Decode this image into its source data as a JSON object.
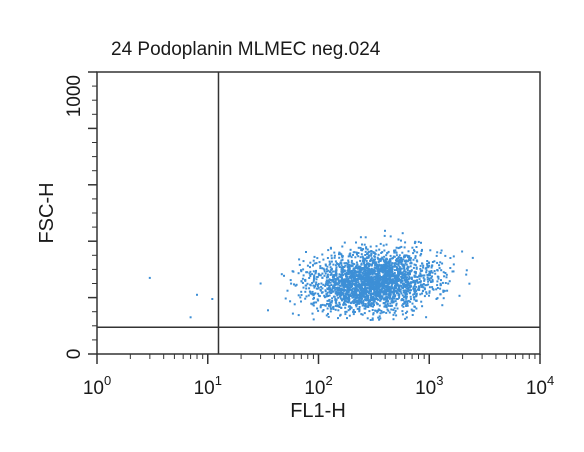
{
  "chart_data": {
    "type": "scatter",
    "title": "24 Podoplanin MLMEC neg.024",
    "xlabel": "FL1-H",
    "ylabel": "FSC-H",
    "x_scale": "log",
    "xlim": [
      1,
      10000
    ],
    "ylim": [
      0,
      1000
    ],
    "x_tick_labels": [
      {
        "base": "10",
        "exp": "0",
        "value": 1
      },
      {
        "base": "10",
        "exp": "1",
        "value": 10
      },
      {
        "base": "10",
        "exp": "2",
        "value": 100
      },
      {
        "base": "10",
        "exp": "3",
        "value": 1000
      },
      {
        "base": "10",
        "exp": "4",
        "value": 10000
      }
    ],
    "y_tick_labels": [
      {
        "text": "0",
        "value": 0
      },
      {
        "text": "1000",
        "value": 1000
      }
    ],
    "gate": {
      "x": 12.5,
      "y": 95
    },
    "point_color": "#3d8fd6",
    "axis_color": "#333333",
    "population": {
      "n_points": 2600,
      "log_x_center": 2.48,
      "log_x_spread": 0.28,
      "y_center": 255,
      "y_spread": 55,
      "x_range": [
        40,
        2500
      ],
      "y_range": [
        120,
        520
      ]
    },
    "outliers": [
      {
        "x": 3.0,
        "y": 270
      },
      {
        "x": 7.0,
        "y": 130
      },
      {
        "x": 8.0,
        "y": 210
      },
      {
        "x": 11.0,
        "y": 195
      },
      {
        "x": 35.0,
        "y": 155
      },
      {
        "x": 30.0,
        "y": 250
      }
    ]
  }
}
